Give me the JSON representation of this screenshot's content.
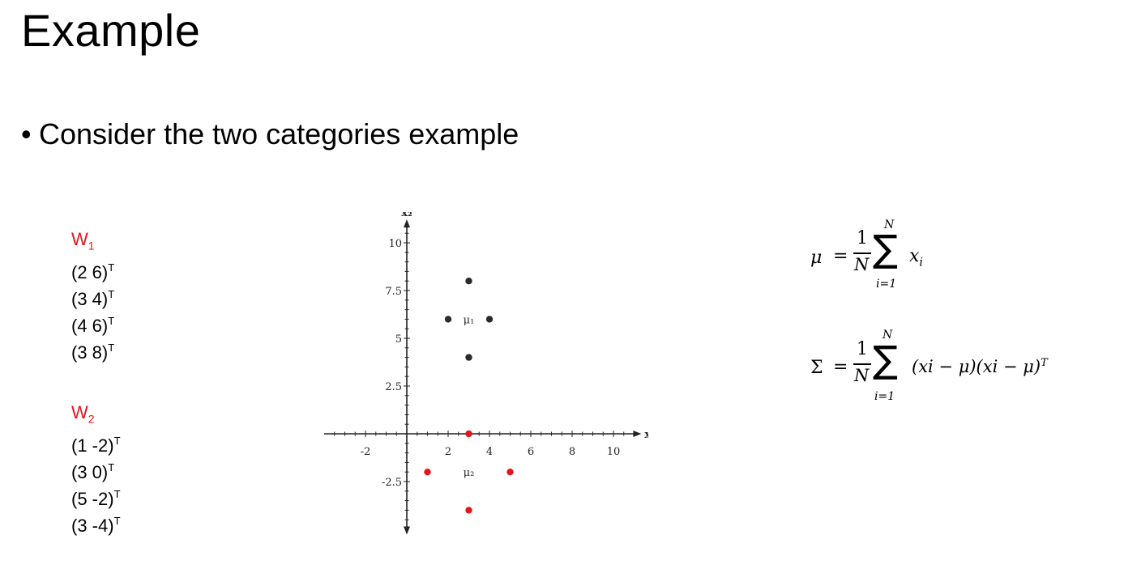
{
  "slide": {
    "title": "Example",
    "bullet": "Consider the two categories example"
  },
  "classes": [
    {
      "name": "W",
      "sub": "1",
      "vectors": [
        "(2 6)",
        "(3 4)",
        "(4 6)",
        "(3 8)"
      ],
      "transpose": "T"
    },
    {
      "name": "W",
      "sub": "2",
      "vectors": [
        "(1 -2)",
        "(3 0)",
        "(5 -2)",
        "(3 -4)"
      ],
      "transpose": "T"
    }
  ],
  "chart_data": {
    "type": "scatter",
    "xlabel": "x₁",
    "ylabel": "x₂",
    "xlim": [
      -3.5,
      10.8
    ],
    "ylim": [
      -4.6,
      10.8
    ],
    "x_ticks": [
      -2,
      2,
      4,
      6,
      8,
      10
    ],
    "y_ticks": [
      -2.5,
      2.5,
      5,
      7.5,
      10
    ],
    "series": [
      {
        "color": "#2a2a2a",
        "points": [
          [
            2,
            6
          ],
          [
            3,
            4
          ],
          [
            4,
            6
          ],
          [
            3,
            8
          ]
        ]
      },
      {
        "color": "#e8141b",
        "points": [
          [
            1,
            -2
          ],
          [
            3,
            0
          ],
          [
            5,
            -2
          ],
          [
            3,
            -4
          ]
        ]
      }
    ],
    "annotations": [
      {
        "text": "μ₁",
        "x": 3,
        "y": 6
      },
      {
        "text": "μ₂",
        "x": 3,
        "y": -2
      }
    ]
  },
  "formulas": {
    "mu": {
      "lhs": "μ",
      "eq": "=",
      "num": "1",
      "den": "N",
      "sigma": "∑",
      "upper": "N",
      "lower": "i=1",
      "body": "x",
      "body_sub": "i"
    },
    "sigma": {
      "lhs": "Σ",
      "eq": "=",
      "num": "1",
      "den": "N",
      "sigma": "∑",
      "upper": "N",
      "lower": "i=1",
      "body": "(xi − μ)(xi − μ)",
      "body_sup": "T"
    }
  }
}
